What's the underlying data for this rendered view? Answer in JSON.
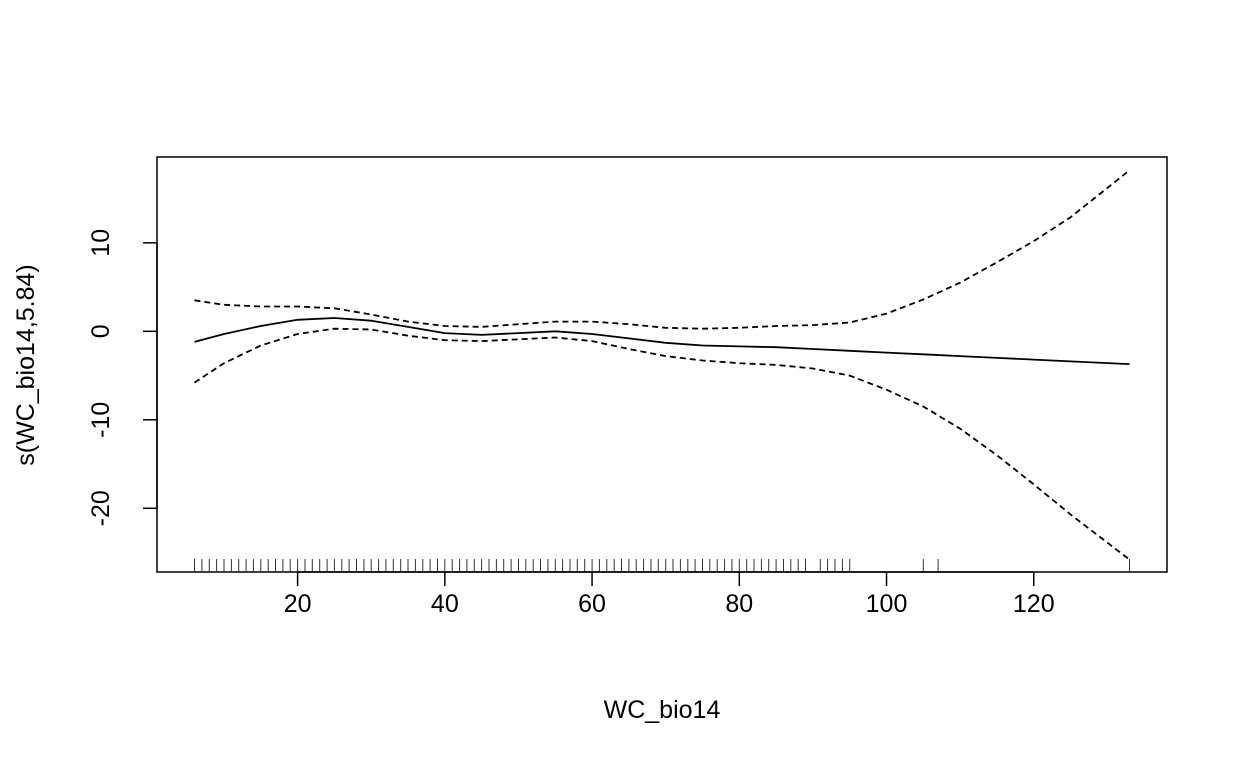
{
  "chart_data": {
    "type": "line",
    "title": "",
    "xlabel": "WC_bio14",
    "ylabel": "s(WC_bio14,5.84)",
    "xlim": [
      0.9,
      138.1
    ],
    "ylim": [
      -27.2,
      19.7
    ],
    "xticks": [
      20,
      40,
      60,
      80,
      100,
      120
    ],
    "xtick_labels": [
      "20",
      "40",
      "60",
      "80",
      "100",
      "120"
    ],
    "yticks": [
      -20,
      -10,
      0,
      10
    ],
    "ytick_labels": [
      "-20",
      "-10",
      "0",
      "10"
    ],
    "series": [
      {
        "name": "fit",
        "style": "solid",
        "x": [
          6,
          10,
          15,
          20,
          25,
          30,
          35,
          40,
          45,
          50,
          55,
          60,
          65,
          70,
          75,
          80,
          85,
          90,
          95,
          100,
          105,
          110,
          115,
          120,
          125,
          133
        ],
        "y": [
          -1.2,
          -0.3,
          0.6,
          1.3,
          1.5,
          1.2,
          0.5,
          -0.2,
          -0.4,
          -0.2,
          0.0,
          -0.3,
          -0.8,
          -1.3,
          -1.6,
          -1.7,
          -1.8,
          -2.0,
          -2.2,
          -2.4,
          -2.6,
          -2.8,
          -3.0,
          -3.2,
          -3.4,
          -3.7
        ]
      },
      {
        "name": "upper_ci",
        "style": "dashed",
        "x": [
          6,
          10,
          15,
          20,
          25,
          30,
          35,
          40,
          45,
          50,
          55,
          60,
          65,
          70,
          75,
          80,
          85,
          90,
          95,
          100,
          105,
          110,
          115,
          120,
          125,
          133
        ],
        "y": [
          3.5,
          3.0,
          2.8,
          2.8,
          2.6,
          1.9,
          1.1,
          0.6,
          0.5,
          0.8,
          1.1,
          1.1,
          0.8,
          0.4,
          0.3,
          0.4,
          0.6,
          0.7,
          1.0,
          2.0,
          3.6,
          5.5,
          7.8,
          10.2,
          12.9,
          18.2
        ]
      },
      {
        "name": "lower_ci",
        "style": "dashed",
        "x": [
          6,
          10,
          15,
          20,
          25,
          30,
          35,
          40,
          45,
          50,
          55,
          60,
          65,
          70,
          75,
          80,
          85,
          90,
          95,
          100,
          105,
          110,
          115,
          120,
          125,
          133
        ],
        "y": [
          -5.8,
          -3.6,
          -1.6,
          -0.3,
          0.3,
          0.2,
          -0.5,
          -1.0,
          -1.1,
          -0.9,
          -0.7,
          -1.1,
          -2.0,
          -2.8,
          -3.3,
          -3.6,
          -3.8,
          -4.2,
          -5.0,
          -6.6,
          -8.5,
          -11.0,
          -14.0,
          -17.3,
          -20.7,
          -25.8
        ]
      }
    ],
    "rug": [
      6,
      7,
      8,
      9,
      10,
      11,
      12,
      13,
      14,
      15,
      16,
      17,
      18,
      19,
      20,
      21,
      22,
      23,
      24,
      25,
      26,
      27,
      28,
      29,
      30,
      31,
      32,
      33,
      34,
      35,
      36,
      37,
      38,
      39,
      40,
      41,
      42,
      43,
      44,
      45,
      46,
      47,
      48,
      49,
      50,
      51,
      52,
      53,
      54,
      55,
      56,
      57,
      58,
      59,
      60,
      61,
      62,
      63,
      64,
      65,
      66,
      67,
      68,
      69,
      70,
      71,
      72,
      73,
      74,
      75,
      76,
      77,
      78,
      79,
      80,
      81,
      82,
      83,
      84,
      85,
      86,
      87,
      88,
      89,
      91,
      92,
      93,
      94,
      95,
      105,
      107,
      133
    ]
  }
}
